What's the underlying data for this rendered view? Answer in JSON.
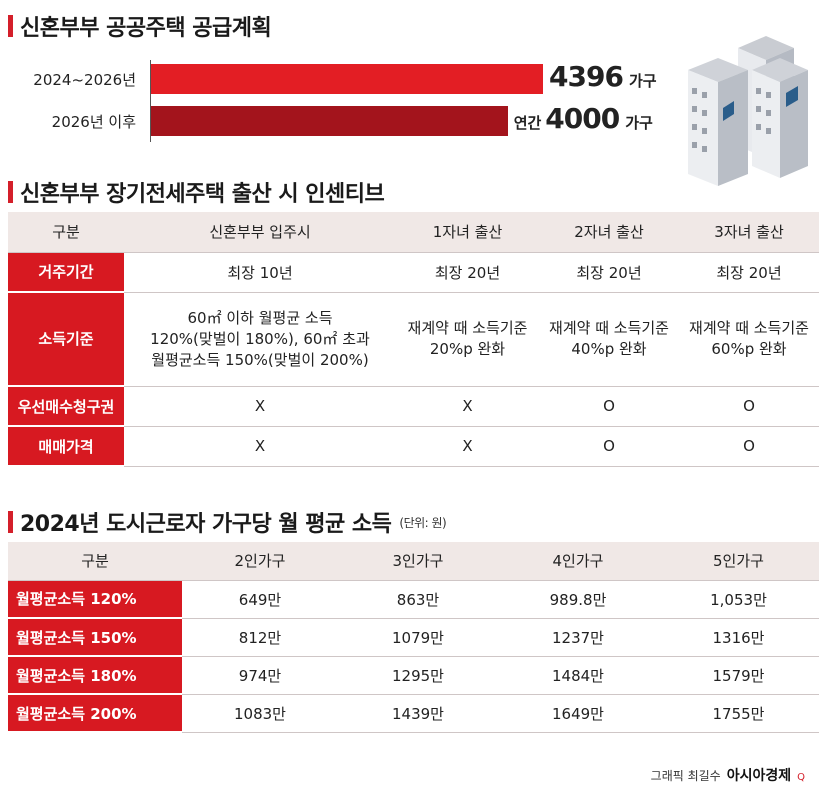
{
  "section1": {
    "title": "신혼부부 공공주택 공급계획"
  },
  "chart_data": {
    "type": "bar",
    "orientation": "horizontal",
    "title": "신혼부부 공공주택 공급계획",
    "categories": [
      "2024~2026년",
      "2026년 이후"
    ],
    "values": [
      4396,
      4000
    ],
    "value_labels": [
      {
        "prefix": "",
        "number": "4396",
        "suffix": "가구"
      },
      {
        "prefix": "연간",
        "number": "4000",
        "suffix": "가구"
      }
    ],
    "colors": [
      "#e31e24",
      "#a3141c"
    ],
    "xlim": [
      0,
      4500
    ],
    "grid": false,
    "legend": false
  },
  "section2": {
    "title": "신혼부부 장기전세주택 출산 시 인센티브",
    "headers": [
      "구분",
      "신혼부부 입주시",
      "1자녀 출산",
      "2자녀 출산",
      "3자녀 출산"
    ],
    "rows": [
      {
        "label": "거주기간",
        "cells": [
          "최장 10년",
          "최장 20년",
          "최장 20년",
          "최장 20년"
        ]
      },
      {
        "label": "소득기준",
        "cells": [
          [
            "60㎡ 이하 월평균 소득",
            "120%(맞벌이 180%), 60㎡ 초과",
            "월평균소득 150%(맞벌이 200%)"
          ],
          [
            "재계약 때 소득기준",
            "20%p 완화"
          ],
          [
            "재계약 때 소득기준",
            "40%p 완화"
          ],
          [
            "재계약 때 소득기준",
            "60%p 완화"
          ]
        ]
      },
      {
        "label": "우선매수청구권",
        "cells": [
          "X",
          "X",
          "O",
          "O"
        ]
      },
      {
        "label": "매매가격",
        "cells": [
          "X",
          "X",
          "O",
          "O"
        ]
      }
    ]
  },
  "section3": {
    "title": "2024년 도시근로자 가구당 월 평균 소득",
    "unit": "(단위: 원)",
    "headers": [
      "구분",
      "2인가구",
      "3인가구",
      "4인가구",
      "5인가구"
    ],
    "rows": [
      {
        "label": "월평균소득 120%",
        "cells": [
          "649만",
          "863만",
          "989.8만",
          "1,053만"
        ]
      },
      {
        "label": "월평균소득 150%",
        "cells": [
          "812만",
          "1079만",
          "1237만",
          "1316만"
        ]
      },
      {
        "label": "월평균소득 180%",
        "cells": [
          "974만",
          "1295만",
          "1484만",
          "1579만"
        ]
      },
      {
        "label": "월평균소득 200%",
        "cells": [
          "1083만",
          "1439만",
          "1649만",
          "1755만"
        ]
      }
    ]
  },
  "credit": {
    "text": "그래픽 최길수",
    "brand": "아시아경제",
    "mark": "Q"
  },
  "colors": {
    "accent": "#d41f2a",
    "header_bg": "#f0e8e6"
  }
}
